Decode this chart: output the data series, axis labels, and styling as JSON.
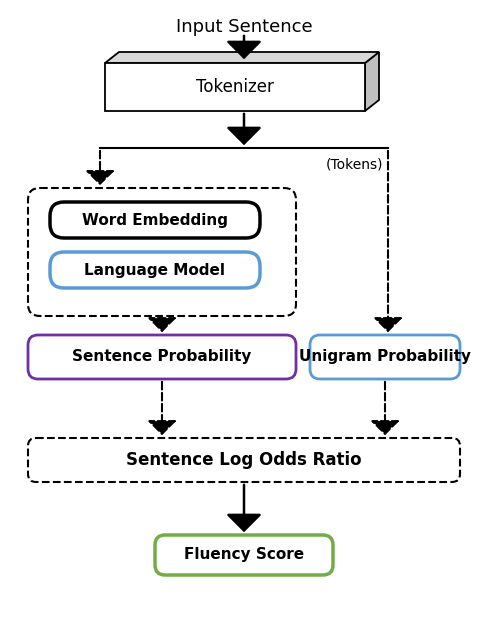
{
  "title": "Input Sentence",
  "tokenizer_label": "Tokenizer",
  "tokens_label": "(Tokens)",
  "word_embedding_label": "Word Embedding",
  "language_model_label": "Language Model",
  "sentence_prob_label": "Sentence Probability",
  "unigram_prob_label": "Unigram Probability",
  "log_odds_label": "Sentence Log Odds Ratio",
  "fluency_label": "Fluency Score",
  "bg_color": "#ffffff",
  "text_color": "#000000",
  "dashed_box_color": "#000000",
  "word_emb_box_color": "#000000",
  "lang_model_box_color": "#5b9bd5",
  "sent_prob_box_color": "#7030a0",
  "unigram_box_color": "#5b9bd5",
  "fluency_box_color": "#70ad47",
  "figsize": [
    4.88,
    6.18
  ],
  "dpi": 100
}
